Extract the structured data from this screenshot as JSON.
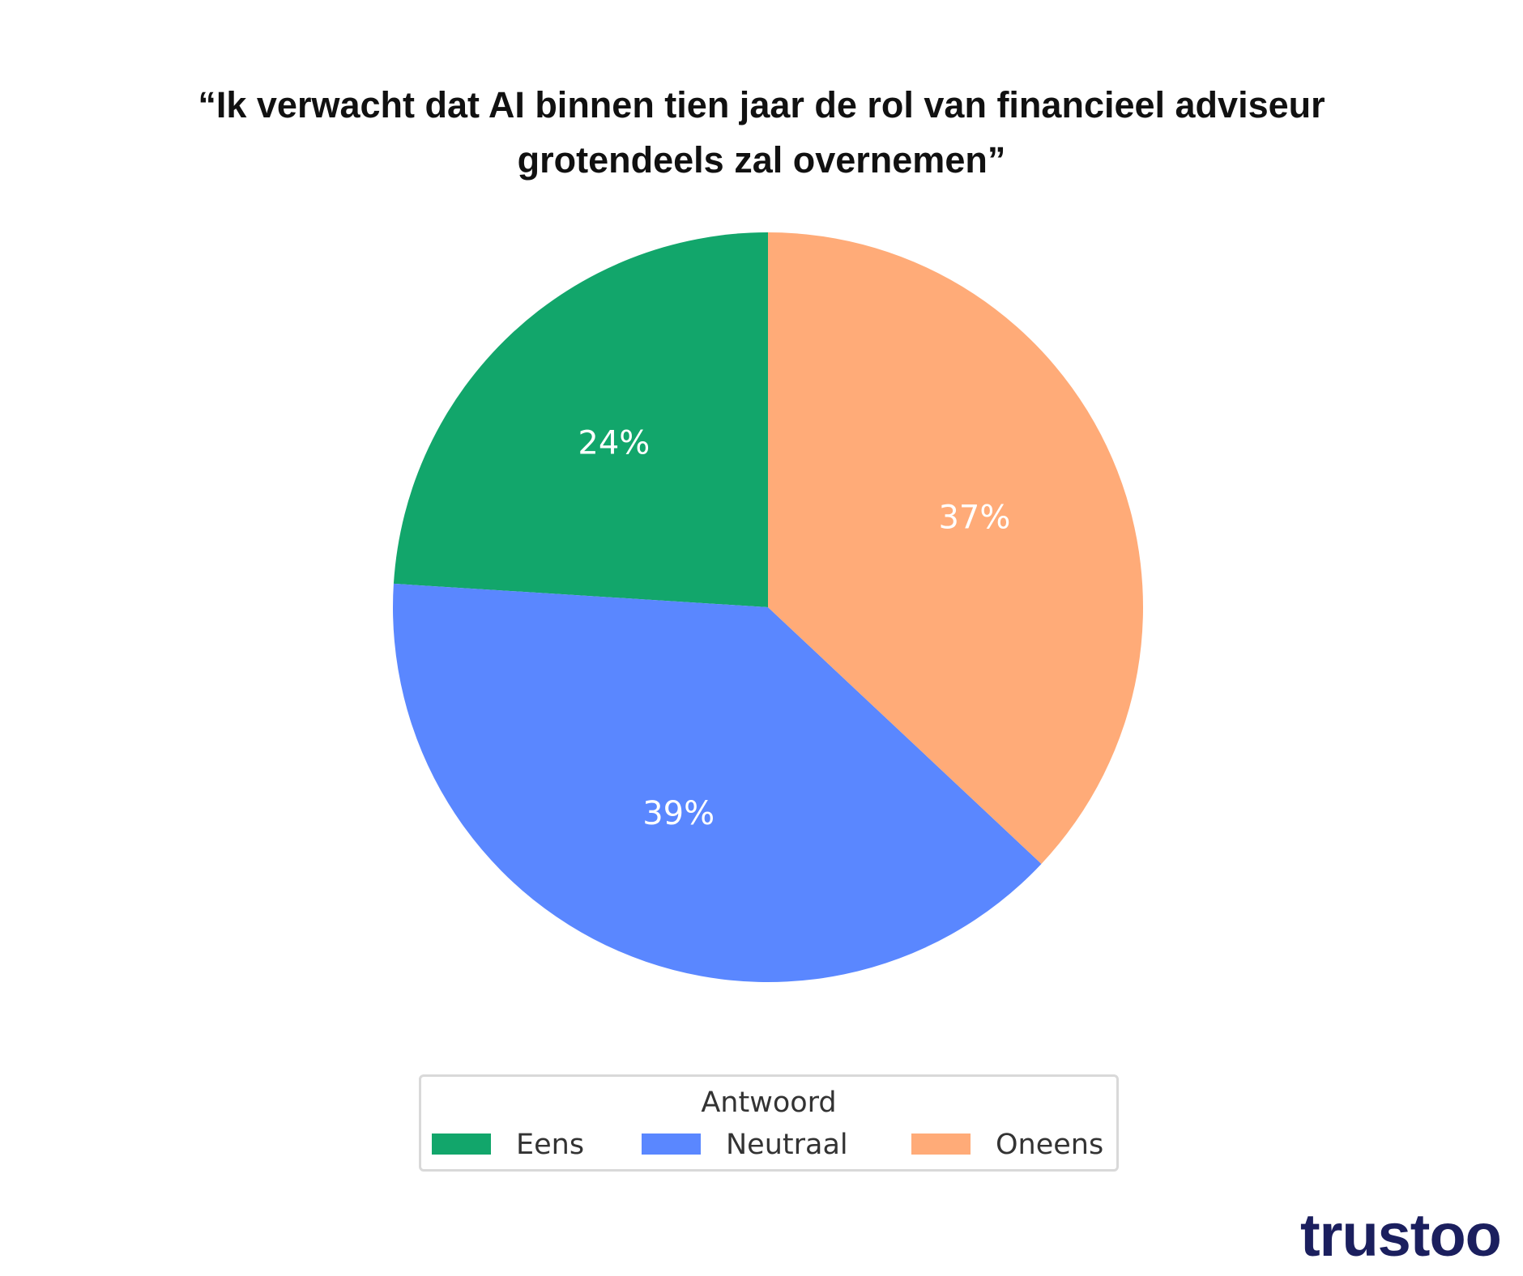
{
  "chart_data": {
    "type": "pie",
    "title_lines": [
      "“Ik verwacht dat AI binnen tien jaar de rol van financieel adviseur",
      "grotendeels zal overnemen”"
    ],
    "categories": [
      "Eens",
      "Neutraal",
      "Oneens"
    ],
    "values": [
      24,
      39,
      37
    ],
    "labels": [
      "24%",
      "39%",
      "37%"
    ],
    "colors": [
      "#12a66b",
      "#5a87ff",
      "#ffab78"
    ],
    "legend_title": "Antwoord",
    "legend_placement": "bottom-center",
    "start_angle_deg": 90,
    "direction": "counterclockwise"
  },
  "logo": {
    "text": "trustoo",
    "name": "trustoo-logo"
  }
}
